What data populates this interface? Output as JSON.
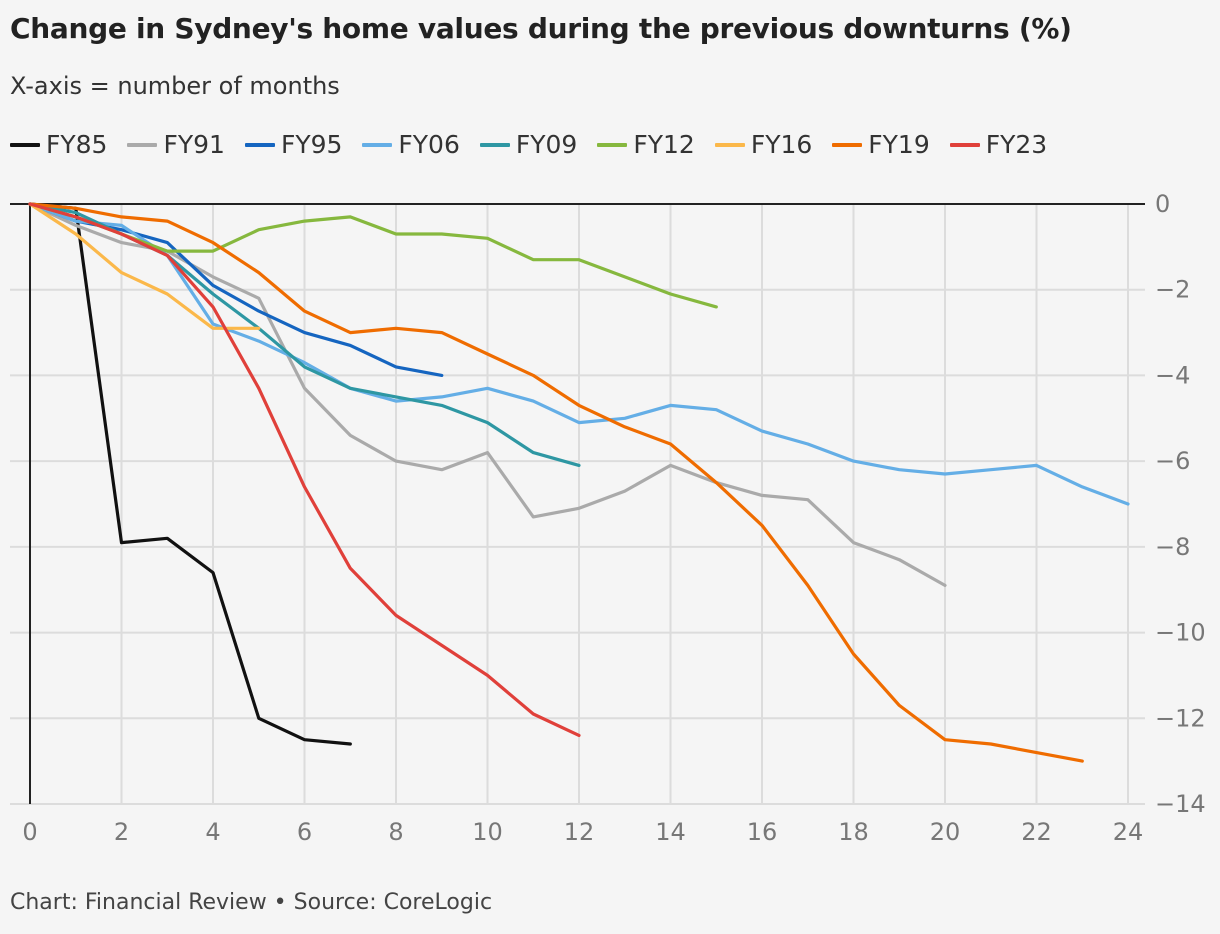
{
  "header": {
    "title": "Change in Sydney's home values during the previous downturns (%)",
    "subtitle": "X-axis = number of months"
  },
  "footer": {
    "text": "Chart: Financial Review • Source: CoreLogic"
  },
  "chart_data": {
    "type": "line",
    "title": "Change in Sydney's home values during the previous downturns (%)",
    "subtitle": "X-axis = number of months",
    "xlim": [
      0,
      24
    ],
    "ylim": [
      -14,
      0
    ],
    "x_ticks": [
      0,
      2,
      4,
      6,
      8,
      10,
      12,
      14,
      16,
      18,
      20,
      22,
      24
    ],
    "y_ticks": [
      0,
      -2,
      -4,
      -6,
      -8,
      -10,
      -12,
      -14
    ],
    "x_tick_labels": [
      "0",
      "2",
      "4",
      "6",
      "8",
      "10",
      "12",
      "14",
      "16",
      "18",
      "20",
      "22",
      "24"
    ],
    "y_tick_labels": [
      "0",
      "−2",
      "−4",
      "−6",
      "−8",
      "−10",
      "−12",
      "−14"
    ],
    "y_axis_position": "right",
    "grid": true,
    "legend_position": "top-left",
    "series": [
      {
        "name": "FY85",
        "color": "#111111",
        "values": [
          0,
          -0.1,
          -7.9,
          -7.8,
          -8.6,
          -12.0,
          -12.5,
          -12.6
        ]
      },
      {
        "name": "FY91",
        "color": "#aaaaaa",
        "values": [
          0,
          -0.5,
          -0.9,
          -1.1,
          -1.7,
          -2.2,
          -4.3,
          -5.4,
          -6.0,
          -6.2,
          -5.8,
          -7.3,
          -7.1,
          -6.7,
          -6.1,
          -6.5,
          -6.8,
          -6.9,
          -7.9,
          -8.3,
          -8.9
        ]
      },
      {
        "name": "FY95",
        "color": "#1565c0",
        "values": [
          0,
          -0.4,
          -0.6,
          -0.9,
          -1.9,
          -2.5,
          -3.0,
          -3.3,
          -3.8,
          -4.0
        ]
      },
      {
        "name": "FY06",
        "color": "#64aee6",
        "values": [
          0,
          -0.4,
          -0.5,
          -1.2,
          -2.8,
          -3.2,
          -3.7,
          -4.3,
          -4.6,
          -4.5,
          -4.3,
          -4.6,
          -5.1,
          -5.0,
          -4.7,
          -4.8,
          -5.3,
          -5.6,
          -6.0,
          -6.2,
          -6.3,
          -6.2,
          -6.1,
          -6.6,
          -7.0
        ]
      },
      {
        "name": "FY09",
        "color": "#2e97a3",
        "values": [
          0,
          -0.2,
          -0.7,
          -1.2,
          -2.1,
          -2.9,
          -3.8,
          -4.3,
          -4.5,
          -4.7,
          -5.1,
          -5.8,
          -6.1
        ]
      },
      {
        "name": "FY12",
        "color": "#86b83e",
        "values": [
          0,
          -0.3,
          -0.7,
          -1.1,
          -1.1,
          -0.6,
          -0.4,
          -0.3,
          -0.7,
          -0.7,
          -0.8,
          -1.3,
          -1.3,
          -1.7,
          -2.1,
          -2.4
        ]
      },
      {
        "name": "FY16",
        "color": "#fbb84a",
        "values": [
          0,
          -0.7,
          -1.6,
          -2.1,
          -2.9,
          -2.9
        ]
      },
      {
        "name": "FY19",
        "color": "#ef6c00",
        "values": [
          0,
          -0.1,
          -0.3,
          -0.4,
          -0.9,
          -1.6,
          -2.5,
          -3.0,
          -2.9,
          -3.0,
          -3.5,
          -4.0,
          -4.7,
          -5.2,
          -5.6,
          -6.5,
          -7.5,
          -8.9,
          -10.5,
          -11.7,
          -12.5,
          -12.6,
          -12.8,
          -13.0
        ]
      },
      {
        "name": "FY23",
        "color": "#e0403a",
        "values": [
          0,
          -0.3,
          -0.7,
          -1.2,
          -2.4,
          -4.3,
          -6.6,
          -8.5,
          -9.6,
          -10.3,
          -11.0,
          -11.9,
          -12.4
        ]
      }
    ]
  }
}
